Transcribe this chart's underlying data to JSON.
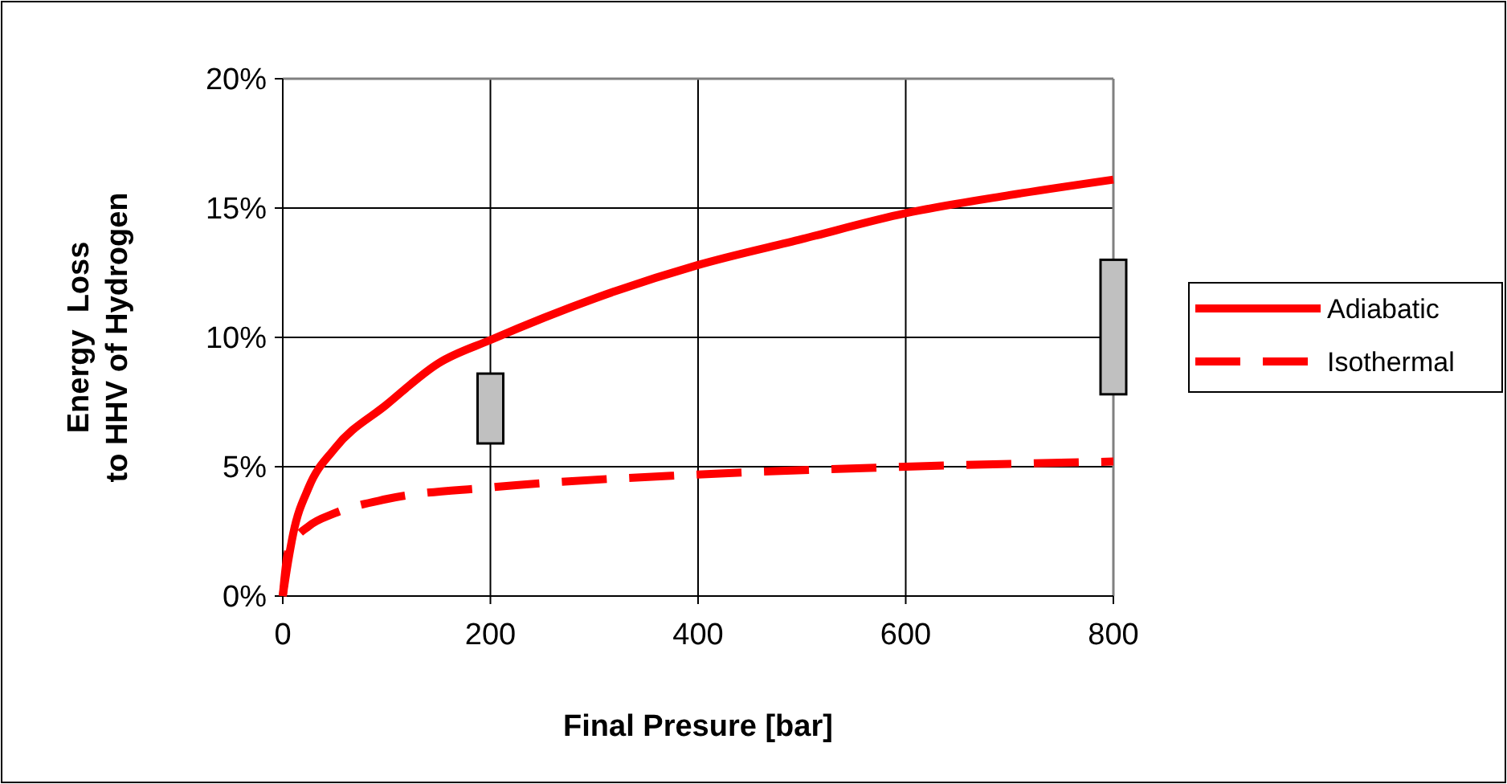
{
  "chart_data": {
    "type": "line",
    "xlabel": "Final Presure [bar]",
    "ylabel": "Energy  Loss\nto HHV of Hydrogen",
    "xlim": [
      0,
      800
    ],
    "xticks": [
      0,
      200,
      400,
      600,
      800
    ],
    "ylim": [
      0,
      20
    ],
    "yticks": [
      {
        "value": 0,
        "label": "0%"
      },
      {
        "value": 5,
        "label": "5%"
      },
      {
        "value": 10,
        "label": "10%"
      },
      {
        "value": 15,
        "label": "15%"
      },
      {
        "value": 20,
        "label": "20%"
      }
    ],
    "grid": true,
    "legend": "right",
    "marker": "none",
    "series": [
      {
        "name": "Adiabatic",
        "color": "#ff0000",
        "line_style": "solid",
        "x": [
          0,
          5,
          10,
          25,
          50,
          100,
          150,
          200,
          300,
          400,
          500,
          600,
          700,
          800
        ],
        "values": [
          0,
          1.3,
          2.4,
          4.2,
          5.7,
          7.4,
          9.0,
          9.9,
          11.5,
          12.8,
          13.8,
          14.8,
          15.5,
          16.1
        ]
      },
      {
        "name": "Isothermal",
        "color": "#ff0000",
        "line_style": "dashed",
        "x": [
          0,
          5,
          10,
          25,
          50,
          100,
          200,
          400,
          600,
          800
        ],
        "values": [
          0,
          1.7,
          2.1,
          2.7,
          3.2,
          3.75,
          4.2,
          4.7,
          5.0,
          5.2
        ]
      },
      {
        "type": "bar",
        "color": "#c0c0c0",
        "x": [
          200,
          800
        ],
        "base": [
          5.9,
          7.8
        ],
        "values": [
          2.7,
          5.2
        ]
      }
    ]
  }
}
